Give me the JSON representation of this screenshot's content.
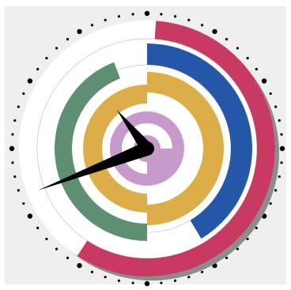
{
  "panel_color": "#efefef",
  "face_color": "#ffffff",
  "shadow_color": "#8c8c8c",
  "arcs": [
    {
      "name": "outer-crimson-arc",
      "color": "#c93a62",
      "start_deg": 4,
      "end_deg": 213
    },
    {
      "name": "outer-blue-arc",
      "color": "#2457a8",
      "start_deg": 0,
      "end_deg": 149
    },
    {
      "name": "outer-gold-arc",
      "color": "#ddad49",
      "start_deg": 0,
      "end_deg": 180
    },
    {
      "name": "middle-green-arc",
      "color": "#5e8f72",
      "start_deg": 180,
      "end_deg": 339
    },
    {
      "name": "middle-gold-arc",
      "color": "#ddad49",
      "start_deg": 180,
      "end_deg": 360
    },
    {
      "name": "inner-lilac-spiral",
      "color": "#c79bc9"
    }
  ],
  "hands": {
    "color": "#000000",
    "hour_deg": 322,
    "minute_deg": 249
  },
  "tick_color": "#000000"
}
